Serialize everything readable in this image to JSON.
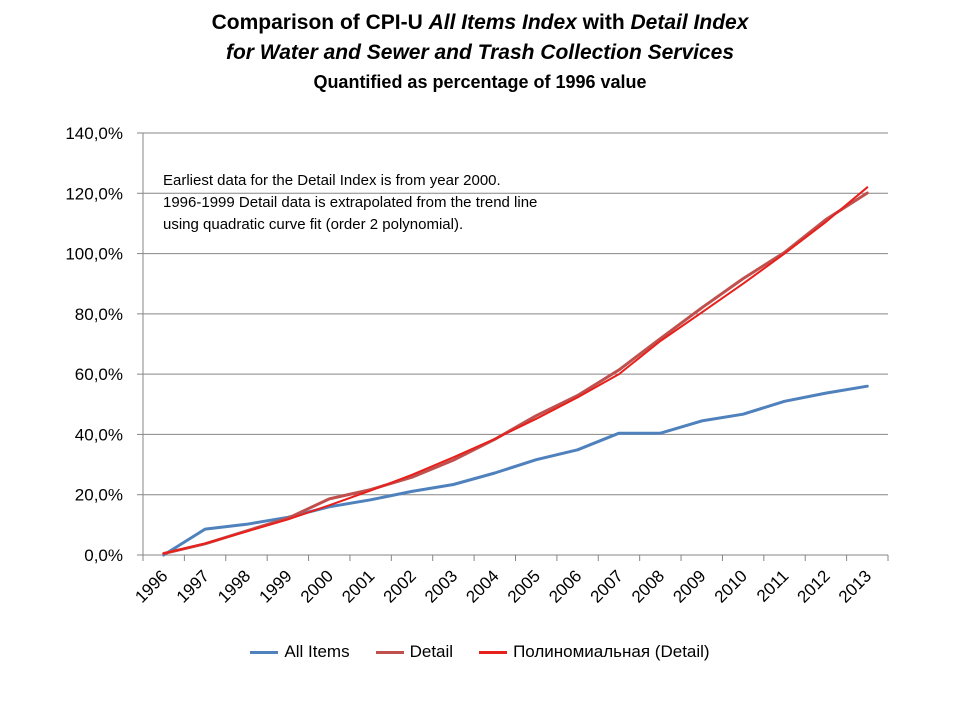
{
  "title": {
    "prefix": "Comparison of CPI-U ",
    "italic_1": "All Items Index",
    "middle": " with ",
    "italic_2": "Detail Index",
    "line2": "for Water and Sewer and Trash Collection Services",
    "subtitle": "Quantified as percentage of 1996 value"
  },
  "annotation": {
    "line1": "Earliest data for the Detail Index is from year 2000.",
    "line2": "1996-1999 Detail data is extrapolated from the trend line",
    "line3": "using quadratic curve fit (order 2 polynomial)."
  },
  "chart_data": {
    "type": "line",
    "categories": [
      "1996",
      "1997",
      "1998",
      "1999",
      "2000",
      "2001",
      "2002",
      "2003",
      "2004",
      "2005",
      "2006",
      "2007",
      "2008",
      "2009",
      "2010",
      "2011",
      "2012",
      "2013"
    ],
    "ylim": [
      0,
      140
    ],
    "yticks": [
      "0,0%",
      "20,0%",
      "40,0%",
      "60,0%",
      "80,0%",
      "100,0%",
      "120,0%",
      "140,0%"
    ],
    "grid": true,
    "legend_position": "bottom",
    "series": [
      {
        "name": "All Items",
        "color": "#4F81BD",
        "values": [
          0,
          8.6,
          10.2,
          12.5,
          16.0,
          18.3,
          21.1,
          23.4,
          27.2,
          31.6,
          34.9,
          40.4,
          40.4,
          44.5,
          46.7,
          51.0,
          53.7,
          56.0
        ]
      },
      {
        "name": "Detail",
        "color": "#C0504D",
        "values": [
          0.5,
          3.7,
          8.0,
          12.2,
          18.6,
          21.7,
          25.8,
          31.5,
          38.4,
          46.2,
          52.9,
          61.4,
          71.8,
          82.0,
          91.7,
          100.4,
          111.3,
          120.1
        ]
      },
      {
        "name": "Полиномиальная (Detail)",
        "color": "#E8201C",
        "values": [
          0.5,
          3.8,
          7.8,
          11.8,
          16.5,
          21.4,
          26.6,
          32.4,
          38.5,
          45.2,
          52.3,
          60.0,
          71.0,
          80.5,
          90.0,
          100.0,
          110.5,
          122.0
        ]
      }
    ]
  }
}
